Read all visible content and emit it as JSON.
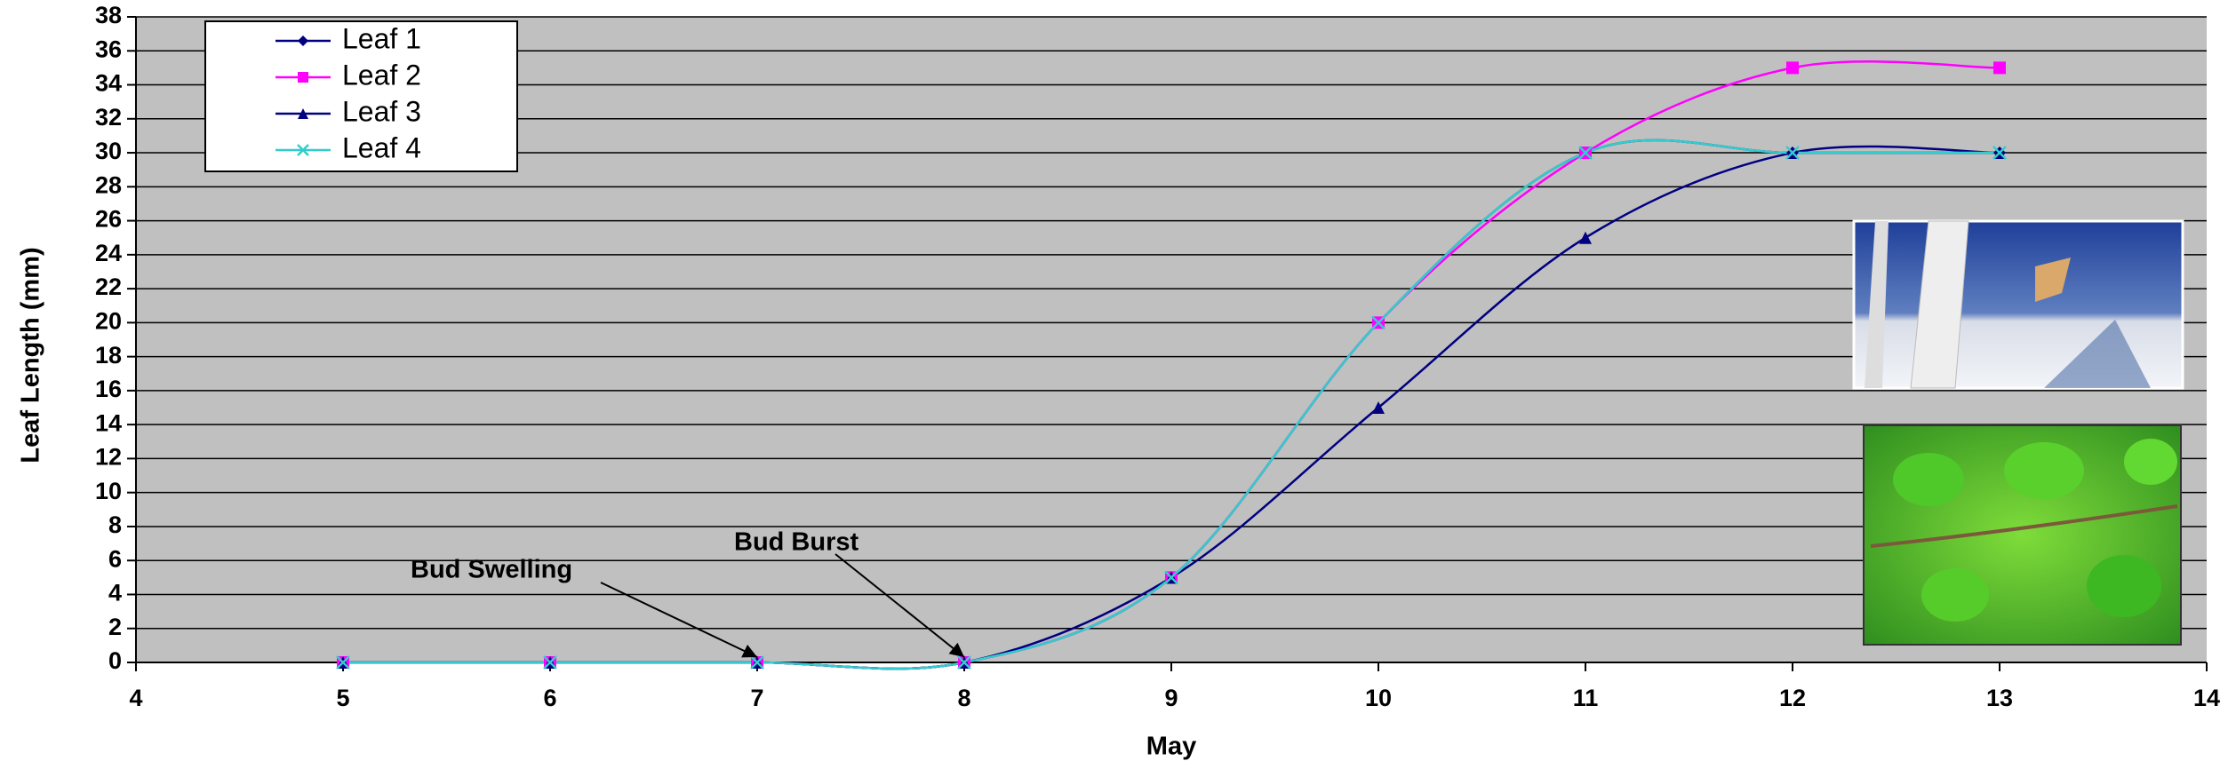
{
  "chart_data": {
    "type": "line",
    "xlabel": "May",
    "ylabel": "Leaf Length (mm)",
    "x": [
      5,
      6,
      7,
      8,
      9,
      10,
      11,
      12,
      13
    ],
    "series": [
      {
        "name": "Leaf 1",
        "color": "#000080",
        "marker": "diamond",
        "values": [
          0,
          0,
          0,
          0,
          5,
          20,
          30,
          30,
          30
        ]
      },
      {
        "name": "Leaf 2",
        "color": "#ff00ff",
        "marker": "square",
        "values": [
          0,
          0,
          0,
          0,
          5,
          20,
          30,
          35,
          35
        ]
      },
      {
        "name": "Leaf 3",
        "color": "#000080",
        "marker": "triangle",
        "values": [
          0,
          0,
          0,
          0,
          5,
          15,
          25,
          30,
          30
        ]
      },
      {
        "name": "Leaf 4",
        "color": "#33cccc",
        "marker": "x",
        "values": [
          0,
          0,
          0,
          0,
          5,
          20,
          30,
          30,
          30
        ]
      }
    ],
    "xlim": [
      4,
      14
    ],
    "xticks": [
      4,
      5,
      6,
      7,
      8,
      9,
      10,
      11,
      12,
      13,
      14
    ],
    "ylim": [
      0,
      38
    ],
    "yticks": [
      0,
      2,
      4,
      6,
      8,
      10,
      12,
      14,
      16,
      18,
      20,
      22,
      24,
      26,
      28,
      30,
      32,
      34,
      36,
      38
    ],
    "grid": true,
    "smooth": true,
    "legend": "upper left",
    "annotations": [
      "Bud Swelling",
      "Bud Burst"
    ]
  }
}
